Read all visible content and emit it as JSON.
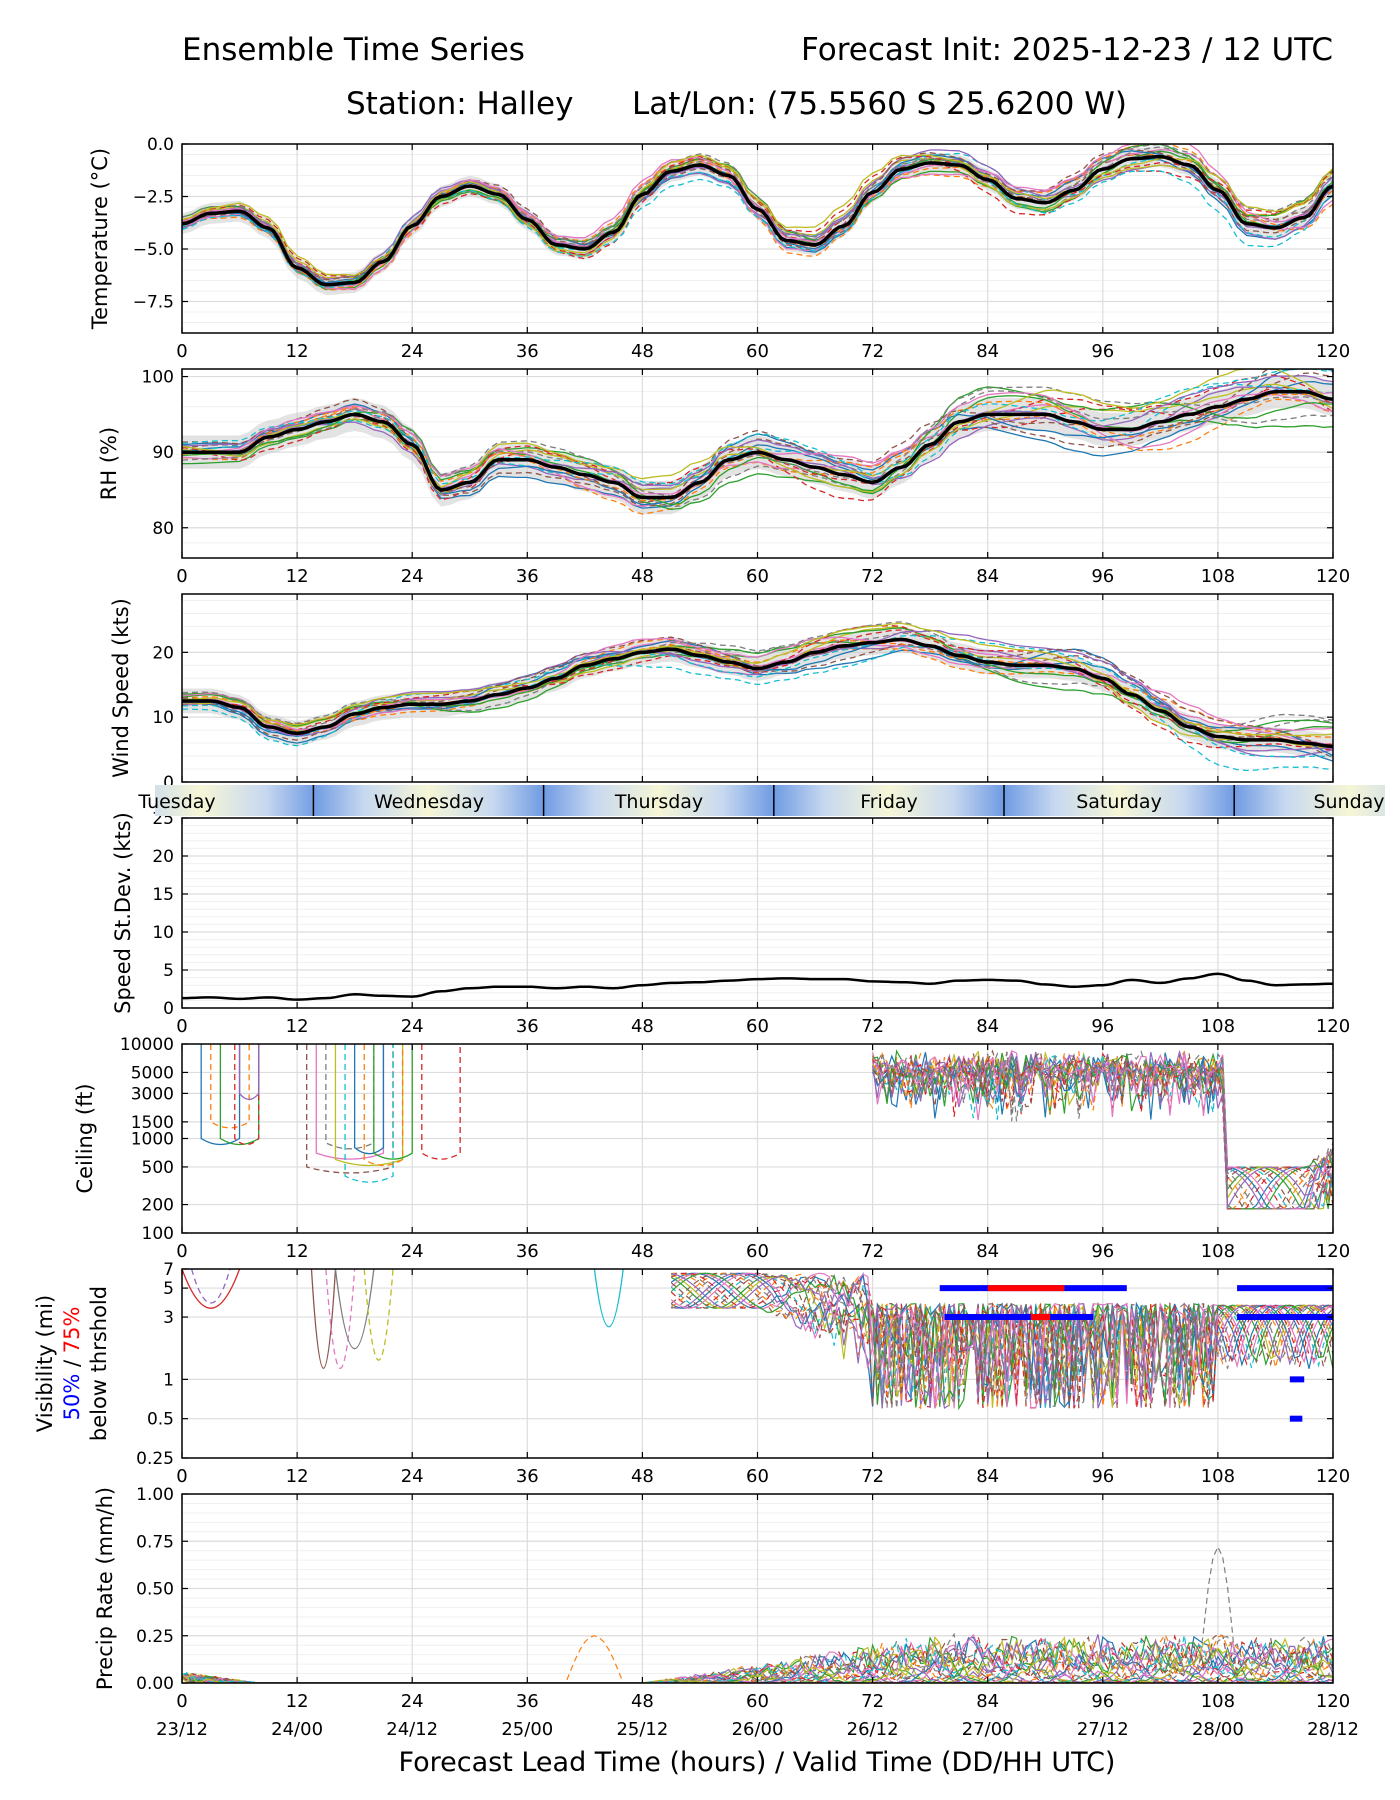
{
  "header": {
    "title": "Ensemble Time Series",
    "forecast_init": "Forecast Init: 2025-12-23 / 12 UTC",
    "station": "Station: Halley",
    "latlon": "Lat/Lon: (75.5560 S 25.6200 W)"
  },
  "colors": {
    "members": [
      "#1f77b4",
      "#ff7f0e",
      "#2ca02c",
      "#d62728",
      "#9467bd",
      "#8c564b",
      "#e377c2",
      "#7f7f7f",
      "#bcbd22",
      "#17becf"
    ],
    "mean": "#000000",
    "spread": "#cccccc",
    "vis50": "#0000ff",
    "vis75": "#ff0000"
  },
  "chart_data": {
    "type": "line",
    "x_axis": {
      "label": "Forecast Lead Time (hours) / Valid Time (DD/HH UTC)",
      "range": [
        0,
        120
      ],
      "ticks": [
        0,
        12,
        24,
        36,
        48,
        60,
        72,
        84,
        96,
        108,
        120
      ],
      "tick_labels": [
        "0",
        "12",
        "24",
        "36",
        "48",
        "60",
        "72",
        "84",
        "96",
        "108",
        "120"
      ],
      "valid_time_labels": [
        "23/12",
        "24/00",
        "24/12",
        "25/00",
        "25/12",
        "26/00",
        "26/12",
        "27/00",
        "27/12",
        "28/00",
        "28/12"
      ]
    },
    "day_band": {
      "days": [
        "Tuesday",
        "Wednesday",
        "Thursday",
        "Friday",
        "Saturday",
        "Sunday"
      ],
      "day_start_hours": [
        -10,
        13.7,
        37.7,
        61.7,
        85.7,
        109.7
      ]
    },
    "panels": [
      {
        "id": "temperature",
        "ylabel": "Temperature (°C)",
        "ylim": [
          -9,
          0
        ],
        "yticks": [
          0,
          -2.5,
          -5,
          -7.5
        ],
        "ytick_labels": [
          "0.0",
          "−2.5",
          "−5.0",
          "−7.5"
        ],
        "mean_series": {
          "x": [
            0,
            3,
            6,
            9,
            12,
            15,
            18,
            21,
            24,
            27,
            30,
            33,
            36,
            39,
            42,
            45,
            48,
            51,
            54,
            57,
            60,
            63,
            66,
            69,
            72,
            75,
            78,
            81,
            84,
            87,
            90,
            93,
            96,
            99,
            102,
            105,
            108,
            111,
            114,
            117,
            120
          ],
          "values": [
            -3.8,
            -3.3,
            -3.2,
            -4.0,
            -5.9,
            -6.7,
            -6.6,
            -5.6,
            -3.9,
            -2.5,
            -2.0,
            -2.4,
            -3.6,
            -4.8,
            -5.0,
            -4.2,
            -2.4,
            -1.3,
            -1.0,
            -1.5,
            -3.1,
            -4.6,
            -4.8,
            -3.9,
            -2.3,
            -1.2,
            -0.9,
            -1.0,
            -1.7,
            -2.6,
            -2.8,
            -2.2,
            -1.2,
            -0.7,
            -0.6,
            -1.0,
            -2.2,
            -3.8,
            -4.0,
            -3.5,
            -2.0
          ]
        }
      },
      {
        "id": "rh",
        "ylabel": "RH (%)",
        "ylim": [
          76,
          101
        ],
        "yticks": [
          80,
          90,
          100
        ],
        "ytick_labels": [
          "80",
          "90",
          "100"
        ],
        "mean_series": {
          "x": [
            0,
            3,
            6,
            9,
            12,
            15,
            18,
            21,
            24,
            27,
            30,
            33,
            36,
            39,
            42,
            45,
            48,
            51,
            54,
            57,
            60,
            63,
            66,
            69,
            72,
            75,
            78,
            81,
            84,
            87,
            90,
            93,
            96,
            99,
            102,
            105,
            108,
            111,
            114,
            117,
            120
          ],
          "values": [
            90,
            90,
            90,
            92,
            93,
            94,
            95,
            94,
            91,
            85,
            86,
            89,
            89,
            88,
            87,
            86,
            84,
            84,
            86,
            89,
            90,
            89,
            88,
            87,
            86,
            88,
            91,
            94,
            95,
            95,
            95,
            94,
            93,
            93,
            94,
            95,
            96,
            97,
            98,
            98,
            97
          ]
        }
      },
      {
        "id": "wind_speed",
        "ylabel": "Wind Speed (kts)",
        "ylim": [
          0,
          29
        ],
        "yticks": [
          0,
          10,
          20
        ],
        "ytick_labels": [
          "0",
          "10",
          "20"
        ],
        "mean_series": {
          "x": [
            0,
            3,
            6,
            9,
            12,
            15,
            18,
            21,
            24,
            27,
            30,
            33,
            36,
            39,
            42,
            45,
            48,
            51,
            54,
            57,
            60,
            63,
            66,
            69,
            72,
            75,
            78,
            81,
            84,
            87,
            90,
            93,
            96,
            99,
            102,
            105,
            108,
            111,
            114,
            117,
            120
          ],
          "values": [
            12.5,
            12.5,
            11.5,
            8.5,
            7.5,
            8.5,
            10.5,
            11.5,
            12,
            12,
            12.5,
            13.5,
            14.5,
            16,
            18,
            19,
            20,
            20.5,
            19.5,
            18.5,
            17.5,
            18.5,
            20,
            21,
            21.5,
            22,
            21,
            19.5,
            18.5,
            18,
            18,
            17.5,
            16,
            13.5,
            11,
            8.5,
            7,
            6.5,
            6.5,
            6,
            5.5
          ]
        }
      },
      {
        "id": "speed_stdev",
        "ylabel": "Speed St.Dev. (kts)",
        "ylim": [
          0,
          25
        ],
        "yticks": [
          0,
          5,
          10,
          15,
          20,
          25
        ],
        "ytick_labels": [
          "0",
          "5",
          "10",
          "15",
          "20",
          "25"
        ],
        "mean_series": {
          "x": [
            0,
            3,
            6,
            9,
            12,
            15,
            18,
            21,
            24,
            27,
            30,
            33,
            36,
            39,
            42,
            45,
            48,
            51,
            54,
            57,
            60,
            63,
            66,
            69,
            72,
            75,
            78,
            81,
            84,
            87,
            90,
            93,
            96,
            99,
            102,
            105,
            108,
            111,
            114,
            117,
            120
          ],
          "values": [
            1.3,
            1.4,
            1.2,
            1.4,
            1.1,
            1.3,
            1.8,
            1.6,
            1.5,
            2.2,
            2.6,
            2.8,
            2.8,
            2.6,
            2.8,
            2.6,
            3.0,
            3.3,
            3.4,
            3.6,
            3.8,
            3.9,
            3.8,
            3.8,
            3.5,
            3.4,
            3.2,
            3.6,
            3.7,
            3.6,
            3.1,
            2.8,
            3.0,
            3.7,
            3.3,
            3.9,
            4.5,
            3.6,
            3.0,
            3.1,
            3.2
          ]
        }
      },
      {
        "id": "ceiling",
        "ylabel": "Ceiling (ft)",
        "scale": "log",
        "ylim": [
          100,
          10000
        ],
        "yticks": [
          100,
          200,
          500,
          1000,
          1500,
          3000,
          5000,
          10000
        ],
        "ytick_labels": [
          "100",
          "200",
          "500",
          "1000",
          "1500",
          "3000",
          "5000",
          "10000"
        ]
      },
      {
        "id": "visibility",
        "ylabel": "Visibility (mi)",
        "ylabel_50": "50%",
        "ylabel_sep": "/",
        "ylabel_75": "75%",
        "ylabel_below": "below thrshold",
        "scale": "log",
        "ylim": [
          0.25,
          7
        ],
        "yticks": [
          0.25,
          0.5,
          1,
          3,
          5,
          7
        ],
        "ytick_labels": [
          "0.25",
          "0.5",
          "1",
          "3",
          "5",
          "7"
        ],
        "threshold_bars": [
          {
            "level": 5,
            "pct": "50%",
            "start": 79,
            "end": 98.5
          },
          {
            "level": 5,
            "pct": "75%",
            "start": 84,
            "end": 92
          },
          {
            "level": 3,
            "pct": "50%",
            "start": 79.5,
            "end": 95
          },
          {
            "level": 3,
            "pct": "75%",
            "start": 88.5,
            "end": 90.5
          },
          {
            "level": 5,
            "pct": "50%",
            "start": 110,
            "end": 120
          },
          {
            "level": 3,
            "pct": "50%",
            "start": 110,
            "end": 120
          },
          {
            "level": 1,
            "pct": "50%",
            "start": 115.5,
            "end": 117
          },
          {
            "level": 0.5,
            "pct": "50%",
            "start": 115.5,
            "end": 116.8
          }
        ]
      },
      {
        "id": "precip",
        "ylabel": "Precip Rate (mm/h)",
        "ylim": [
          0,
          1
        ],
        "yticks": [
          0,
          0.25,
          0.5,
          0.75,
          1
        ],
        "ytick_labels": [
          "0.00",
          "0.25",
          "0.50",
          "0.75",
          "1.00"
        ]
      }
    ]
  }
}
